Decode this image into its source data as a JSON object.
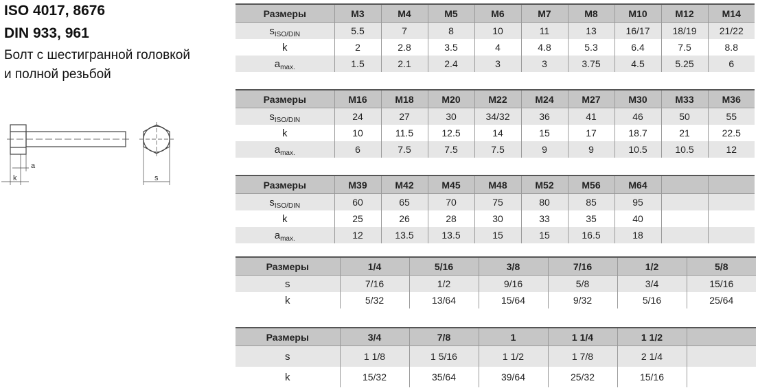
{
  "header": {
    "standard_iso": "ISO 4017, 8676",
    "standard_din": "DIN 933, 961",
    "description_line1": "Болт с шестигранной головкой",
    "description_line2": "и полной резьбой"
  },
  "drawing": {
    "label_a": "a",
    "label_k": "k",
    "label_s": "s"
  },
  "tables": [
    {
      "header": [
        "Размеры",
        "M3",
        "M4",
        "M5",
        "M6",
        "M7",
        "M8",
        "M10",
        "M12",
        "M14"
      ],
      "rows": [
        {
          "label": "s",
          "sub": "ISO/DIN",
          "values": [
            "5.5",
            "7",
            "8",
            "10",
            "11",
            "13",
            "16/17",
            "18/19",
            "21/22"
          ]
        },
        {
          "label": "k",
          "sub": "",
          "values": [
            "2",
            "2.8",
            "3.5",
            "4",
            "4.8",
            "5.3",
            "6.4",
            "7.5",
            "8.8"
          ]
        },
        {
          "label": "a",
          "sub": "max.",
          "values": [
            "1.5",
            "2.1",
            "2.4",
            "3",
            "3",
            "3.75",
            "4.5",
            "5.25",
            "6"
          ]
        }
      ]
    },
    {
      "header": [
        "Размеры",
        "M16",
        "M18",
        "M20",
        "M22",
        "M24",
        "M27",
        "M30",
        "M33",
        "M36"
      ],
      "rows": [
        {
          "label": "s",
          "sub": "ISO/DIN",
          "values": [
            "24",
            "27",
            "30",
            "34/32",
            "36",
            "41",
            "46",
            "50",
            "55"
          ]
        },
        {
          "label": "k",
          "sub": "",
          "values": [
            "10",
            "11.5",
            "12.5",
            "14",
            "15",
            "17",
            "18.7",
            "21",
            "22.5"
          ]
        },
        {
          "label": "a",
          "sub": "max.",
          "values": [
            "6",
            "7.5",
            "7.5",
            "7.5",
            "9",
            "9",
            "10.5",
            "10.5",
            "12"
          ]
        }
      ]
    },
    {
      "header": [
        "Размеры",
        "M39",
        "M42",
        "M45",
        "M48",
        "M52",
        "M56",
        "M64",
        "",
        ""
      ],
      "rows": [
        {
          "label": "s",
          "sub": "ISO/DIN",
          "values": [
            "60",
            "65",
            "70",
            "75",
            "80",
            "85",
            "95",
            "",
            ""
          ]
        },
        {
          "label": "k",
          "sub": "",
          "values": [
            "25",
            "26",
            "28",
            "30",
            "33",
            "35",
            "40",
            "",
            ""
          ]
        },
        {
          "label": "a",
          "sub": "max.",
          "values": [
            "12",
            "13.5",
            "13.5",
            "15",
            "15",
            "16.5",
            "18",
            "",
            ""
          ]
        }
      ]
    },
    {
      "header": [
        "Размеры",
        "1/4",
        "5/16",
        "3/8",
        "7/16",
        "1/2",
        "5/8"
      ],
      "rows": [
        {
          "label": "s",
          "sub": "",
          "values": [
            "7/16",
            "1/2",
            "9/16",
            "5/8",
            "3/4",
            "15/16"
          ]
        },
        {
          "label": "k",
          "sub": "",
          "values": [
            "5/32",
            "13/64",
            "15/64",
            "9/32",
            "5/16",
            "25/64"
          ]
        }
      ]
    },
    {
      "header": [
        "Размеры",
        "3/4",
        "7/8",
        "1",
        "1 1/4",
        "1 1/2",
        ""
      ],
      "rows": [
        {
          "label": "s",
          "sub": "",
          "values": [
            "1 1/8",
            "1 5/16",
            "1 1/2",
            "1 7/8",
            "2 1/4",
            ""
          ]
        },
        {
          "label": "k",
          "sub": "",
          "values": [
            "15/32",
            "35/64",
            "39/64",
            "25/32",
            "15/16",
            ""
          ]
        }
      ]
    }
  ]
}
